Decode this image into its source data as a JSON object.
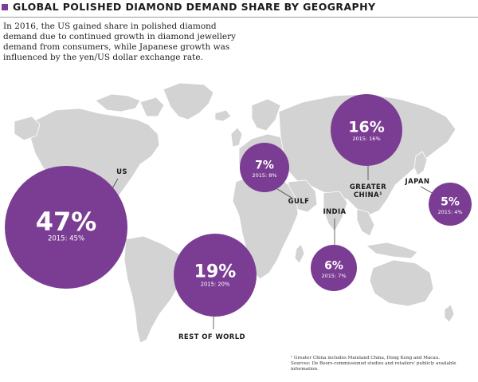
{
  "title": "GLOBAL POLISHED DIAMOND DEMAND SHARE BY GEOGRAPHY",
  "subtitle": "In 2016, the US gained share in polished diamond demand due to continued growth in diamond jewellery demand from consumers, while Japanese growth was influenced by the yen/US dollar exchange rate.",
  "footnote": {
    "line1": "¹ Greater China includes Mainland China, Hong Kong and Macau.",
    "line2": "Sources: De Beers-commissioned studies and retailers' publicly available information."
  },
  "colors": {
    "bubble": "#7b3d93",
    "land": "#d3d3d3",
    "text": "#1a1a1a",
    "leader": "#444444"
  },
  "chart_data": {
    "type": "bubble-map",
    "title": "GLOBAL POLISHED DIAMOND DEMAND SHARE BY GEOGRAPHY",
    "unit": "%",
    "regions": [
      {
        "name": "US",
        "share_2016": "47%",
        "share_2015": "2015: 45%",
        "value_2016": 47,
        "value_2015": 45
      },
      {
        "name": "REST OF WORLD",
        "share_2016": "19%",
        "share_2015": "2015: 20%",
        "value_2016": 19,
        "value_2015": 20
      },
      {
        "name": "GULF",
        "share_2016": "7%",
        "share_2015": "2015: 8%",
        "value_2016": 7,
        "value_2015": 8
      },
      {
        "name": "GREATER CHINA¹",
        "share_2016": "16%",
        "share_2015": "2015: 16%",
        "value_2016": 16,
        "value_2015": 16
      },
      {
        "name": "INDIA",
        "share_2016": "6%",
        "share_2015": "2015: 7%",
        "value_2016": 6,
        "value_2015": 7
      },
      {
        "name": "JAPAN",
        "share_2016": "5%",
        "share_2015": "2015: 4%",
        "value_2016": 5,
        "value_2015": 4
      }
    ]
  }
}
